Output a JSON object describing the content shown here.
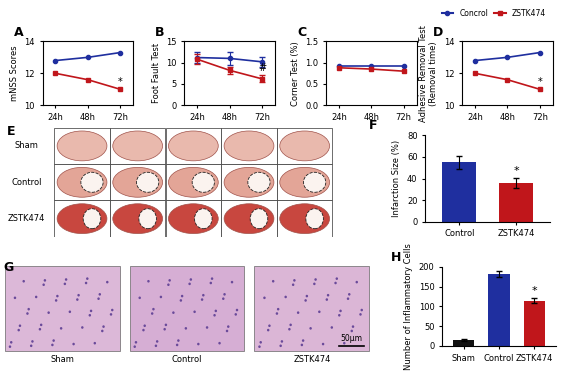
{
  "chart_data": [
    {
      "title": "A",
      "type": "line",
      "categories": [
        "24h",
        "48h",
        "72h"
      ],
      "y_label": "mNSS Scores",
      "ylim": [
        10,
        14
      ],
      "yticks": [
        10,
        12,
        14
      ],
      "series": [
        {
          "name": "Concrol",
          "color": "#1f2f9f",
          "marker": "circle",
          "values": [
            12.8,
            13.0,
            13.3
          ]
        },
        {
          "name": "ZSTK474",
          "color": "#c0161b",
          "marker": "square",
          "values": [
            12.0,
            11.6,
            11.0
          ]
        }
      ],
      "annotations": [
        {
          "text": "*",
          "x": "72h",
          "series": "ZSTK474"
        }
      ]
    },
    {
      "title": "B",
      "type": "line",
      "categories": [
        "24h",
        "48h",
        "72h"
      ],
      "y_label": "Foot Fault Test",
      "ylim": [
        0,
        15
      ],
      "yticks": [
        0,
        5,
        10,
        15
      ],
      "series": [
        {
          "name": "Concrol",
          "color": "#1f2f9f",
          "marker": "circle",
          "values": [
            11.2,
            11.0,
            10.2
          ],
          "errors": [
            1.3,
            1.5,
            1.2
          ]
        },
        {
          "name": "ZSTK474",
          "color": "#c0161b",
          "marker": "square",
          "values": [
            10.8,
            8.2,
            6.2
          ],
          "errors": [
            1.2,
            0.8,
            0.8
          ]
        }
      ],
      "annotations": [
        {
          "text": "#",
          "x": "72h",
          "series": "ZSTK474"
        }
      ]
    },
    {
      "title": "C",
      "type": "line",
      "categories": [
        "24h",
        "48h",
        "72h"
      ],
      "y_label": "Corner Test (%)",
      "ylim": [
        0,
        1.5
      ],
      "yticks": [
        {
          "value": 0,
          "label": "0.0"
        },
        {
          "value": 0.5,
          "label": "0.5"
        },
        {
          "value": 1,
          "label": "1.0"
        },
        {
          "value": 1.5,
          "label": "1.5"
        }
      ],
      "series": [
        {
          "name": "Concrol",
          "color": "#1f2f9f",
          "marker": "circle",
          "values": [
            0.92,
            0.92,
            0.92
          ]
        },
        {
          "name": "ZSTK474",
          "color": "#c0161b",
          "marker": "square",
          "values": [
            0.88,
            0.85,
            0.8
          ]
        }
      ]
    },
    {
      "title": "D",
      "type": "line",
      "categories": [
        "24h",
        "48h",
        "72h"
      ],
      "y_label": "Adhesive Removal Test\n(Removal time)",
      "ylim": [
        10,
        14
      ],
      "yticks": [
        10,
        12,
        14
      ],
      "legend": "upper right",
      "series": [
        {
          "name": "Concrol",
          "color": "#1f2f9f",
          "marker": "circle",
          "values": [
            12.8,
            13.0,
            13.3
          ]
        },
        {
          "name": "ZSTK474",
          "color": "#c0161b",
          "marker": "square",
          "values": [
            12.0,
            11.6,
            11.0
          ]
        }
      ],
      "annotations": [
        {
          "text": "*",
          "x": "72h",
          "series": "ZSTK474"
        }
      ]
    },
    {
      "title": "E",
      "type": "image",
      "rows": [
        "Sham",
        "Control",
        "ZSTK474"
      ]
    },
    {
      "title": "F",
      "type": "bar",
      "categories": [
        "Control",
        "ZSTK474"
      ],
      "y_label": "Infarction Size (%)",
      "values": [
        55,
        36
      ],
      "errors": [
        6,
        5
      ],
      "colors": [
        "#1f2f9f",
        "#c0161b"
      ],
      "ylim": [
        0,
        80
      ],
      "yticks": [
        0,
        20,
        40,
        60,
        80
      ],
      "annotations": [
        {
          "text": "*",
          "x": "ZSTK474"
        }
      ]
    },
    {
      "title": "G",
      "type": "image",
      "labels": [
        "Sham",
        "Control",
        "ZSTK474"
      ],
      "scale_bar": "50μm"
    },
    {
      "title": "H",
      "type": "bar",
      "categories": [
        "Sham",
        "Control",
        "ZSTK474"
      ],
      "y_label": "Number of Inflammatory Cells",
      "values": [
        15,
        182,
        115
      ],
      "errors": [
        2,
        8,
        7
      ],
      "colors": [
        "#111111",
        "#1f2f9f",
        "#c0161b"
      ],
      "ylim": [
        0,
        200
      ],
      "yticks": [
        0,
        50,
        100,
        150,
        200
      ],
      "annotations": [
        {
          "text": "*",
          "x": "ZSTK474"
        }
      ]
    }
  ]
}
